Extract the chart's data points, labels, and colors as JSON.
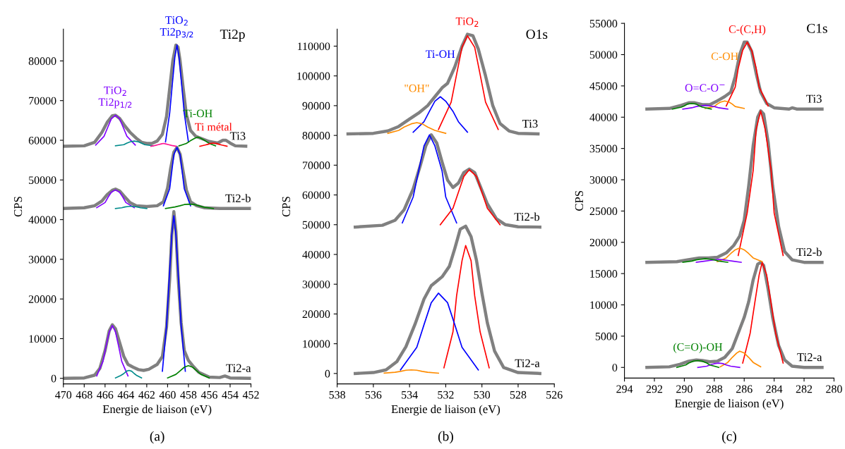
{
  "chart_data": [
    {
      "type": "line",
      "title": "Ti2p",
      "xlabel": "Energie de liaison (eV)",
      "ylabel": "CPS",
      "xlim": [
        470,
        452
      ],
      "xticks": [
        470,
        468,
        466,
        464,
        462,
        460,
        458,
        456,
        454,
        452
      ],
      "ylim": [
        -1400,
        88000
      ],
      "yticks": [
        0,
        10000,
        20000,
        30000,
        40000,
        50000,
        60000,
        70000,
        80000
      ],
      "grid": false,
      "legend": false,
      "annotations": [
        "(a)"
      ],
      "series": [
        {
          "color": "#8000ff",
          "x": [
            466.8,
            466.2,
            465.9,
            465.6,
            465.3,
            465.0,
            464.7,
            464.4,
            463.8
          ],
          "values": [
            600,
            4300,
            8100,
            11700,
            13300,
            11700,
            8100,
            4300,
            600
          ]
        },
        {
          "color": "#0000ff",
          "x": [
            460.5,
            460.1,
            459.85,
            459.6,
            459.4,
            459.2,
            458.95,
            458.7,
            458.3
          ],
          "values": [
            1800,
            13300,
            24900,
            36200,
            41000,
            36200,
            24900,
            13300,
            1800
          ]
        },
        {
          "color": "#008b8b",
          "x": [
            465.0,
            464.5,
            464.2,
            463.95,
            463.7,
            463.45,
            463.2,
            462.95,
            462.5
          ],
          "values": [
            100,
            700,
            1200,
            1800,
            2000,
            1800,
            1200,
            700,
            100
          ]
        },
        {
          "color": "#008000",
          "x": [
            460,
            459.2,
            458.8,
            458.4,
            458,
            457.6,
            457.2,
            456.8,
            456
          ],
          "values": [
            100,
            1000,
            1900,
            2800,
            3200,
            2800,
            1900,
            1000,
            100
          ]
        },
        {
          "name": "Ti2-a",
          "color": "#808080",
          "x": [
            470,
            468,
            467,
            466.5,
            466,
            465.6,
            465.3,
            465,
            464.6,
            464.2,
            463.8,
            463.3,
            462.8,
            462.3,
            461.8,
            461,
            460.5,
            460.1,
            459.8,
            459.6,
            459.4,
            459.2,
            459,
            458.7,
            458.4,
            458,
            457.6,
            457,
            456,
            455,
            454.5,
            454,
            452
          ],
          "values": [
            0,
            100,
            800,
            2500,
            7000,
            12000,
            13500,
            12500,
            9000,
            5500,
            3500,
            2800,
            2200,
            2000,
            2300,
            3500,
            5500,
            13000,
            25000,
            36000,
            42000,
            37000,
            26000,
            14000,
            7000,
            4500,
            3200,
            1500,
            300,
            200,
            600,
            100,
            0
          ]
        },
        {
          "color": "#8000ff",
          "x": [
            466.8,
            466.0,
            465.7,
            465.4,
            465,
            464.6,
            464.3,
            464.0,
            463.2
          ],
          "values": [
            43000,
            44300,
            45700,
            46900,
            47500,
            46900,
            45700,
            44300,
            43000
          ]
        },
        {
          "color": "#0000ff",
          "x": [
            460.4,
            459.8,
            459.6,
            459.4,
            459.1,
            458.8,
            458.6,
            458.4,
            457.8
          ],
          "values": [
            43500,
            47800,
            52100,
            56400,
            58200,
            56400,
            52100,
            47800,
            43500
          ]
        },
        {
          "color": "#008b8b",
          "x": [
            465,
            464.4,
            464.1,
            463.8,
            463.5,
            463.2,
            462.9,
            462.6,
            462
          ],
          "values": [
            42800,
            43000,
            43200,
            43300,
            43400,
            43300,
            43200,
            43000,
            42800
          ]
        },
        {
          "color": "#008000",
          "x": [
            460.2,
            459.3,
            458.8,
            458.4,
            457.9,
            457.4,
            457,
            456.6,
            455.6
          ],
          "values": [
            42800,
            43200,
            43500,
            43800,
            43900,
            43800,
            43500,
            43200,
            42800
          ]
        },
        {
          "name": "Ti2-b",
          "color": "#808080",
          "x": [
            470,
            468,
            467,
            466.3,
            465.8,
            465.3,
            465,
            464.6,
            464.2,
            463.6,
            463,
            462,
            461,
            460.4,
            460,
            459.7,
            459.4,
            459.1,
            458.8,
            458.5,
            458.2,
            457.8,
            457.2,
            456.5,
            455,
            452
          ],
          "values": [
            42800,
            43000,
            43500,
            44700,
            46300,
            47400,
            47700,
            47200,
            46000,
            44300,
            43500,
            43300,
            43500,
            44500,
            48000,
            53000,
            57000,
            58200,
            56500,
            52000,
            47500,
            44500,
            43500,
            43000,
            42800,
            42800
          ]
        },
        {
          "name": "TiO$_{2}$\nTi2p$_{1/2}$",
          "color": "#8000ff",
          "x": [
            466.9,
            466.1,
            465.75,
            465.4,
            465,
            464.6,
            464.25,
            463.9,
            463.1
          ],
          "values": [
            58800,
            61000,
            63200,
            65400,
            66300,
            65400,
            63200,
            61000,
            58800
          ]
        },
        {
          "name": "TiO$_{2}$\nTi2p$_{3/2}$",
          "color": "#0000ff",
          "x": [
            460.2,
            459.8,
            459.55,
            459.3,
            459.1,
            458.9,
            458.65,
            458.4,
            458.0
          ],
          "values": [
            59600,
            66800,
            74000,
            81000,
            84000,
            81000,
            74000,
            66800,
            59600
          ]
        },
        {
          "color": "#008b8b",
          "x": [
            465,
            464.2,
            463.9,
            463.6,
            463.2,
            462.8,
            462.5,
            462.2,
            461.4
          ],
          "values": [
            58600,
            58900,
            59300,
            59600,
            59800,
            59600,
            59300,
            58900,
            58600
          ]
        },
        {
          "color": "#ff1493",
          "x": [
            461.6,
            461.2,
            460.9,
            460.6,
            460.4,
            460.2,
            459.9,
            459.6,
            459.2
          ],
          "values": [
            58500,
            58700,
            58900,
            59100,
            59200,
            59100,
            58900,
            58700,
            58500
          ]
        },
        {
          "name": "Ti-OH",
          "color": "#008000",
          "x": [
            458.9,
            458.2,
            457.8,
            457.4,
            457.1,
            456.8,
            456.4,
            456.0,
            455.4
          ],
          "values": [
            58600,
            59200,
            59900,
            60500,
            60800,
            60500,
            59900,
            59200,
            58600
          ]
        },
        {
          "name": "Ti métal",
          "color": "#ff0000",
          "x": [
            456.9,
            456.4,
            456.1,
            455.9,
            455.6,
            455.3,
            455.1,
            454.8,
            454.3
          ],
          "values": [
            58500,
            58800,
            59000,
            59200,
            59300,
            59200,
            59000,
            58800,
            58500
          ]
        },
        {
          "name": "Ti3",
          "color": "#808080",
          "x": [
            470,
            468,
            467,
            466.3,
            465.8,
            465.3,
            465,
            464.6,
            464.1,
            463.6,
            463,
            462.5,
            462,
            461.5,
            461,
            460.5,
            460.1,
            459.8,
            459.5,
            459.2,
            459.0,
            458.8,
            458.5,
            458.2,
            457.8,
            457.3,
            456.8,
            456,
            455.2,
            454.7,
            454.4,
            454,
            453.5,
            452.5
          ],
          "values": [
            58500,
            58600,
            59500,
            62000,
            64500,
            66200,
            66300,
            65500,
            63600,
            62000,
            60500,
            59500,
            59200,
            59200,
            59800,
            61500,
            66000,
            73000,
            80000,
            84000,
            83500,
            80000,
            73000,
            66500,
            62500,
            61000,
            60500,
            59700,
            59300,
            60000,
            60000,
            59300,
            58600,
            58500
          ]
        }
      ]
    },
    {
      "type": "line",
      "title": "O1s",
      "xlabel": "Energie de liaison (eV)",
      "ylabel": "CPS",
      "xlim": [
        538,
        526
      ],
      "xticks": [
        538,
        536,
        534,
        532,
        530,
        528,
        526
      ],
      "ylim": [
        -3500,
        115700
      ],
      "yticks": [
        0,
        10000,
        20000,
        30000,
        40000,
        50000,
        60000,
        70000,
        80000,
        90000,
        100000,
        110000
      ],
      "grid": false,
      "legend": false,
      "annotations": [
        "(b)"
      ],
      "series": [
        {
          "color": "#ff0000",
          "x": [
            532.1,
            531.6,
            531.4,
            531.1,
            530.9,
            530.6,
            530.4,
            530.1,
            529.6
          ],
          "values": [
            1900,
            14000,
            26100,
            37900,
            43000,
            37900,
            26100,
            14000,
            1900
          ]
        },
        {
          "color": "#0000ff",
          "x": [
            534.5,
            533.6,
            533.2,
            532.8,
            532.4,
            531.9,
            531.5,
            531.1,
            530.2
          ],
          "values": [
            1200,
            8800,
            16400,
            23800,
            27000,
            23800,
            16400,
            8800,
            1200
          ]
        },
        {
          "color": "#ff8c00",
          "x": [
            535.4,
            534.8,
            534.5,
            534.2,
            533.9,
            533.6,
            533.3,
            533,
            532.4
          ],
          "values": [
            100,
            400,
            700,
            1100,
            1200,
            1100,
            700,
            400,
            100
          ]
        },
        {
          "name": "Ti2-a",
          "color": "#808080",
          "x": [
            537,
            536,
            535.3,
            534.7,
            534.2,
            533.7,
            533.2,
            532.8,
            532.5,
            532.2,
            531.8,
            531.5,
            531.2,
            530.9,
            530.6,
            530.3,
            530,
            529.7,
            529.3,
            528.8,
            528,
            526.8
          ],
          "values": [
            0,
            300,
            1200,
            4000,
            9000,
            16500,
            25000,
            29500,
            31000,
            32500,
            36000,
            42000,
            48500,
            49500,
            46000,
            38000,
            27000,
            17000,
            7500,
            2000,
            300,
            0
          ]
        },
        {
          "color": "#0000ff",
          "x": [
            534.4,
            533.8,
            533.5,
            533.2,
            532.9,
            532.6,
            532.2,
            532.0,
            531.4
          ],
          "values": [
            50600,
            59300,
            68000,
            76500,
            80200,
            76500,
            68000,
            59300,
            50600
          ]
        },
        {
          "color": "#ff0000",
          "x": [
            532.3,
            531.6,
            531.3,
            531.0,
            530.7,
            530.3,
            530.0,
            529.7,
            529.0
          ],
          "values": [
            50000,
            55500,
            60900,
            66200,
            68500,
            66200,
            60900,
            55500,
            50000
          ]
        },
        {
          "name": "Ti2-b",
          "color": "#808080",
          "x": [
            537,
            535.5,
            534.8,
            534.3,
            533.8,
            533.4,
            533.1,
            532.8,
            532.5,
            532.2,
            531.9,
            531.6,
            531.3,
            531,
            530.7,
            530.4,
            530.1,
            529.7,
            529.2,
            528.7,
            528,
            526.8
          ],
          "values": [
            49200,
            49800,
            51500,
            55000,
            62000,
            70000,
            76500,
            80200,
            77500,
            71000,
            65000,
            62500,
            64000,
            67500,
            68700,
            67500,
            63000,
            57000,
            52000,
            50000,
            49300,
            49200
          ]
        },
        {
          "name": "TiO$_{2}$",
          "color": "#ff0000",
          "x": [
            532.4,
            531.7,
            531.4,
            531.1,
            530.8,
            530.4,
            530.1,
            529.8,
            529.1
          ],
          "values": [
            82000,
            91200,
            100500,
            109600,
            113500,
            109600,
            100500,
            91200,
            82000
          ]
        },
        {
          "name": "Ti-OH",
          "color": "#0000ff",
          "x": [
            533.8,
            533.2,
            532.9,
            532.6,
            532.3,
            532.0,
            531.6,
            531.3,
            530.8
          ],
          "values": [
            81100,
            84600,
            88100,
            91500,
            93000,
            91500,
            88100,
            84600,
            81100
          ]
        },
        {
          "name": "\"OH\"",
          "color": "#ff8c00",
          "x": [
            535.2,
            534.6,
            534.3,
            533.9,
            533.6,
            533.3,
            533.0,
            532.6,
            532.0
          ],
          "values": [
            80700,
            81700,
            82800,
            83900,
            84300,
            83900,
            82800,
            81700,
            80700
          ]
        },
        {
          "name": "Ti3",
          "color": "#808080",
          "x": [
            537.4,
            536,
            535.2,
            534.6,
            534,
            533.5,
            533,
            532.6,
            532.2,
            531.9,
            531.5,
            531.1,
            530.8,
            530.5,
            530.2,
            529.8,
            529.4,
            529,
            528.5,
            528,
            526.9
          ],
          "values": [
            80500,
            80700,
            81500,
            83000,
            85500,
            87500,
            90000,
            93000,
            96000,
            97500,
            103000,
            110000,
            114000,
            113500,
            109000,
            100000,
            90000,
            84000,
            81500,
            80700,
            80500
          ]
        }
      ]
    },
    {
      "type": "line",
      "title": "C1s",
      "xlabel": "Energie de liaison (eV)",
      "ylabel": "CPS",
      "xlim": [
        294,
        280
      ],
      "xticks": [
        294,
        292,
        290,
        288,
        286,
        284,
        282,
        280
      ],
      "ylim": [
        -1700,
        55000
      ],
      "yticks": [
        0,
        5000,
        10000,
        15000,
        20000,
        25000,
        30000,
        35000,
        40000,
        45000,
        50000,
        55000
      ],
      "grid": false,
      "legend": false,
      "annotations": [
        "(c)"
      ],
      "series": [
        {
          "color": "#ff0000",
          "x": [
            286.1,
            285.6,
            285.3,
            285.0,
            284.8,
            284.5,
            284.2,
            283.9,
            283.4
          ],
          "values": [
            700,
            5500,
            10200,
            14800,
            16800,
            14800,
            10200,
            5500,
            700
          ]
        },
        {
          "color": "#ff8c00",
          "x": [
            287.6,
            287.1,
            286.8,
            286.5,
            286.3,
            286.0,
            285.7,
            285.4,
            284.9
          ],
          "values": [
            100,
            800,
            1600,
            2300,
            2600,
            2300,
            1600,
            800,
            100
          ]
        },
        {
          "color": "#8000ff",
          "x": [
            289.1,
            288.5,
            288.3,
            288.0,
            287.7,
            287.4,
            287.2,
            286.9,
            286.3
          ],
          "values": [
            0,
            200,
            400,
            600,
            700,
            600,
            400,
            200,
            0
          ]
        },
        {
          "name": "(C=O)-OH",
          "color": "#008000",
          "x": [
            290.5,
            289.9,
            289.7,
            289.4,
            289.1,
            288.8,
            288.5,
            288.3,
            287.7
          ],
          "values": [
            0,
            400,
            700,
            1000,
            1100,
            1000,
            700,
            400,
            0
          ]
        },
        {
          "name": "Ti2-a",
          "color": "#808080",
          "x": [
            292.5,
            291,
            290.3,
            289.7,
            289.2,
            288.8,
            288.3,
            287.8,
            287.3,
            286.8,
            286.4,
            286,
            285.7,
            285.4,
            285.1,
            284.9,
            284.7,
            284.4,
            284.1,
            283.7,
            283.3,
            282.8,
            282,
            280.8
          ],
          "values": [
            0,
            100,
            500,
            1000,
            1200,
            1100,
            900,
            1000,
            1600,
            3000,
            5500,
            8000,
            10500,
            14000,
            16500,
            16800,
            16300,
            12500,
            8000,
            3500,
            1200,
            200,
            0,
            0
          ]
        },
        {
          "color": "#ff0000",
          "x": [
            286.4,
            285.8,
            285.4,
            285.2,
            284.9,
            284.6,
            284.2,
            284.0,
            283.4
          ],
          "values": [
            17900,
            24700,
            31500,
            38100,
            41000,
            38100,
            31500,
            24700,
            17900
          ]
        },
        {
          "color": "#ff8c00",
          "x": [
            287.8,
            287.2,
            286.9,
            286.6,
            286.3,
            286,
            285.7,
            285.4,
            284.8
          ],
          "values": [
            16900,
            17500,
            18200,
            18800,
            19100,
            18800,
            18200,
            17500,
            16900
          ]
        },
        {
          "color": "#8000ff",
          "x": [
            289.2,
            288.6,
            288.3,
            288,
            287.7,
            287.4,
            287.1,
            286.8,
            286.2
          ],
          "values": [
            16800,
            17000,
            17100,
            17200,
            17300,
            17200,
            17100,
            17000,
            16800
          ]
        },
        {
          "color": "#008000",
          "x": [
            290.1,
            289.5,
            289.2,
            288.9,
            288.6,
            288.3,
            288.0,
            287.7,
            287.1
          ],
          "values": [
            16800,
            17000,
            17200,
            17300,
            17400,
            17300,
            17200,
            17000,
            16800
          ]
        },
        {
          "name": "Ti2-b",
          "color": "#808080",
          "x": [
            292.5,
            290.5,
            289.8,
            289,
            288.4,
            287.8,
            287.2,
            286.7,
            286.3,
            286,
            285.7,
            285.4,
            285.1,
            284.9,
            284.7,
            284.4,
            284.1,
            283.7,
            283.3,
            282.8,
            282,
            280.8
          ],
          "values": [
            16800,
            16900,
            17200,
            17500,
            17500,
            17600,
            18300,
            19500,
            21000,
            23500,
            29000,
            35500,
            40000,
            41000,
            40500,
            36000,
            29000,
            22500,
            18500,
            17200,
            16800,
            16800
          ]
        },
        {
          "name": "C-(C,H)",
          "color": "#ff0000",
          "x": [
            287.2,
            286.6,
            286.4,
            286.1,
            285.8,
            285.5,
            285.2,
            285.0,
            284.4
          ],
          "values": [
            41800,
            44800,
            47800,
            50700,
            52000,
            50700,
            47800,
            44800,
            41800
          ]
        },
        {
          "name": "C-OH",
          "color": "#ff8c00",
          "x": [
            288.6,
            288.0,
            287.8,
            287.6,
            287.3,
            287.0,
            286.8,
            286.6,
            286.0
          ],
          "values": [
            41400,
            41700,
            42100,
            42400,
            42600,
            42400,
            42100,
            41700,
            41400
          ]
        },
        {
          "name": "O=C-O$^{−}$",
          "color": "#8000ff",
          "x": [
            290.1,
            289.5,
            289.2,
            288.9,
            288.6,
            288.3,
            288,
            287.7,
            287.1
          ],
          "values": [
            41300,
            41500,
            41700,
            41800,
            41900,
            41800,
            41700,
            41500,
            41300
          ]
        },
        {
          "color": "#008000",
          "x": [
            290.8,
            290.2,
            290.0,
            289.8,
            289.5,
            289.2,
            289.0,
            288.8,
            288.2
          ],
          "values": [
            41300,
            41600,
            41800,
            42100,
            42200,
            42100,
            41800,
            41600,
            41300
          ]
        },
        {
          "name": "Ti3",
          "color": "#808080",
          "x": [
            292.5,
            291,
            290.2,
            289.7,
            289.3,
            288.8,
            288.3,
            287.8,
            287.3,
            286.9,
            286.6,
            286.3,
            286,
            285.8,
            285.5,
            285.2,
            284.9,
            284.5,
            284,
            283,
            282.8,
            282.5,
            280.8
          ],
          "values": [
            41300,
            41400,
            41900,
            42300,
            42300,
            42000,
            42000,
            42600,
            43300,
            44000,
            46500,
            50000,
            52000,
            52000,
            50500,
            47000,
            44000,
            42200,
            41500,
            41300,
            41500,
            41300,
            41300
          ]
        }
      ]
    }
  ]
}
